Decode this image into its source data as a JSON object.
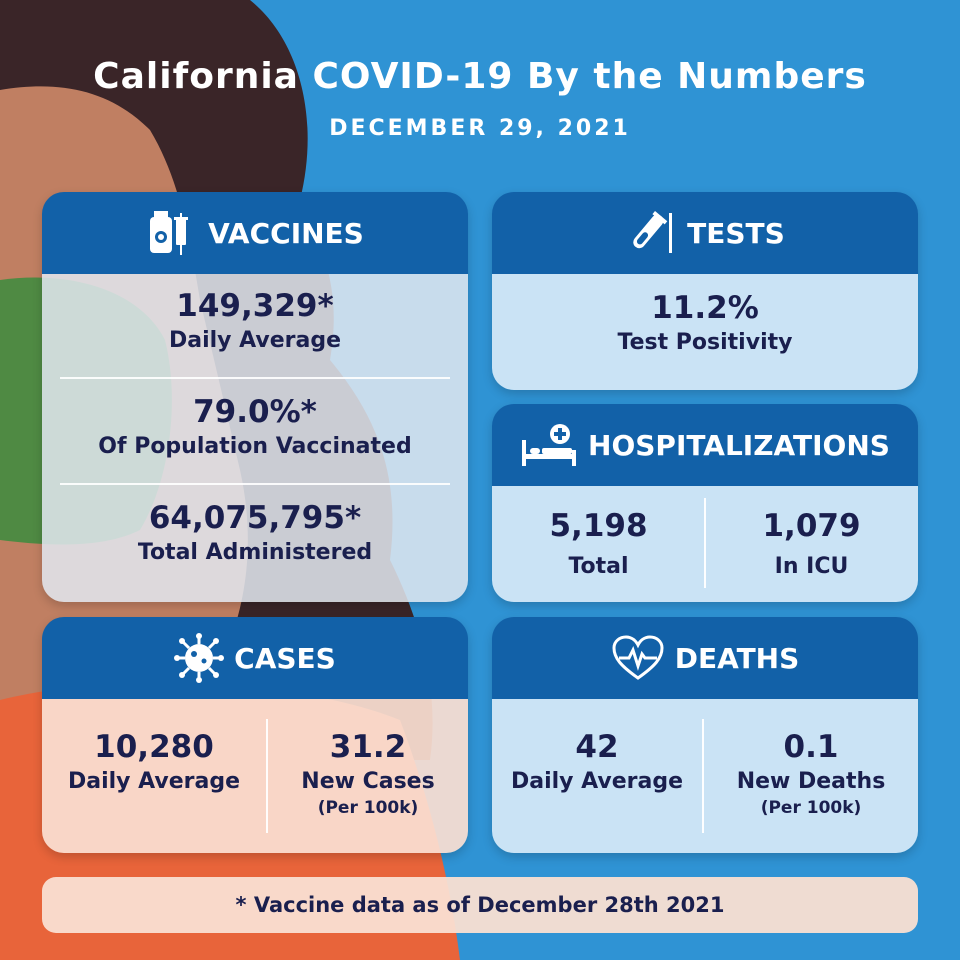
{
  "header": {
    "title": "California COVID-19 By the Numbers",
    "date": "DECEMBER 29, 2021"
  },
  "vaccines": {
    "heading": "VACCINES",
    "icon": "vaccine-vial-syringe-icon",
    "daily_average_value": "149,329*",
    "daily_average_label": "Daily Average",
    "population_value": "79.0%*",
    "population_label": "Of Population Vaccinated",
    "total_value": "64,075,795*",
    "total_label": "Total Administered"
  },
  "tests": {
    "heading": "TESTS",
    "icon": "test-tube-icon",
    "positivity_value": "11.2%",
    "positivity_label": "Test Positivity"
  },
  "hospitalizations": {
    "heading": "HOSPITALIZATIONS",
    "icon": "hospital-bed-icon",
    "total_value": "5,198",
    "total_label": "Total",
    "icu_value": "1,079",
    "icu_label": "In ICU"
  },
  "cases": {
    "heading": "CASES",
    "icon": "virus-icon",
    "daily_average_value": "10,280",
    "daily_average_label": "Daily Average",
    "new_value": "31.2",
    "new_label": "New Cases",
    "new_sub": "(Per 100k)"
  },
  "deaths": {
    "heading": "DEATHS",
    "icon": "heart-pulse-icon",
    "daily_average_value": "42",
    "daily_average_label": "Daily Average",
    "new_value": "0.1",
    "new_label": "New Deaths",
    "new_sub": "(Per 100k)"
  },
  "footnote": "* Vaccine data as of December 28th 2021",
  "colors": {
    "background_blue": "#2f93d4",
    "header_blue": "#1261a8",
    "text_navy": "#1a1f4e",
    "card_light_blue": "#d6eaf8",
    "card_peach": "#fadfd2",
    "hair_dark": "#3a2528",
    "skin_tan": "#c07f62",
    "shirt_orange": "#e8643a",
    "mask_green": "#4f8a43"
  }
}
